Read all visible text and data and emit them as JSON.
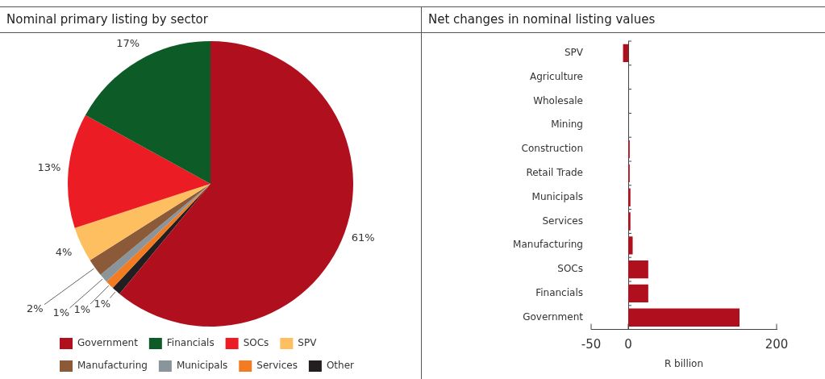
{
  "chart_data": [
    {
      "type": "pie",
      "title": "Nominal primary listing by sector",
      "categories": [
        "Government",
        "Financials",
        "SOCs",
        "SPV",
        "Manufacturing",
        "Municipals",
        "Services",
        "Other"
      ],
      "values": [
        61,
        17,
        13,
        4,
        2,
        1,
        1,
        1
      ],
      "colors": [
        "#b0101e",
        "#0d5b27",
        "#ec1c24",
        "#fdbf5f",
        "#8b5a38",
        "#8a949b",
        "#f37b21",
        "#231f20"
      ],
      "data_labels": true,
      "value_labels": [
        "61%",
        "17%",
        "13%",
        "4%",
        "2%",
        "1%",
        "1%",
        "1%"
      ],
      "legend": "bottom"
    },
    {
      "type": "bar",
      "title": "Net changes in nominal listing values",
      "orientation": "horizontal",
      "categories": [
        "SPV",
        "Agriculture",
        "Wholesale",
        "Mining",
        "Construction",
        "Retail Trade",
        "Municipals",
        "Services",
        "Manufacturing",
        "SOCs",
        "Financials",
        "Government"
      ],
      "values": [
        -7,
        0,
        0,
        0,
        2,
        2,
        3,
        3,
        6,
        27,
        27,
        150
      ],
      "color": "#b0101e",
      "xlabel": "R billion",
      "xlim": [
        -50,
        200
      ],
      "xticks": [
        -50,
        0,
        200
      ],
      "legend": false
    }
  ]
}
